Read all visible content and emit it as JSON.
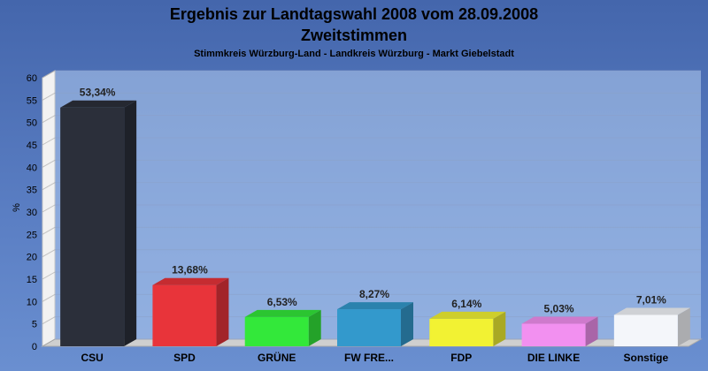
{
  "chart_data": {
    "type": "bar",
    "title": "Ergebnis zur Landtagswahl 2008 vom 28.09.2008",
    "title2": "Zweitstimmen",
    "subtitle": "Stimmkreis Würzburg-Land - Landkreis Würzburg - Markt Giebelstadt",
    "ylabel": "%",
    "ylim": [
      0,
      60
    ],
    "yticks": [
      "0",
      "5",
      "10",
      "15",
      "20",
      "25",
      "30",
      "35",
      "40",
      "45",
      "50",
      "55",
      "60"
    ],
    "categories": [
      "CSU",
      "SPD",
      "GRÜNE",
      "FW FRE...",
      "FDP",
      "DIE LINKE",
      "Sonstige"
    ],
    "values": [
      53.34,
      13.68,
      6.53,
      8.27,
      6.14,
      5.03,
      7.01
    ],
    "value_labels": [
      "53,34%",
      "13,68%",
      "6,53%",
      "8,27%",
      "6,14%",
      "5,03%",
      "7,01%"
    ],
    "colors": [
      "#2b2f3a",
      "#e8343a",
      "#33e83a",
      "#3399cc",
      "#f2f233",
      "#f290f0",
      "#f4f6fa"
    ],
    "grid": true
  }
}
